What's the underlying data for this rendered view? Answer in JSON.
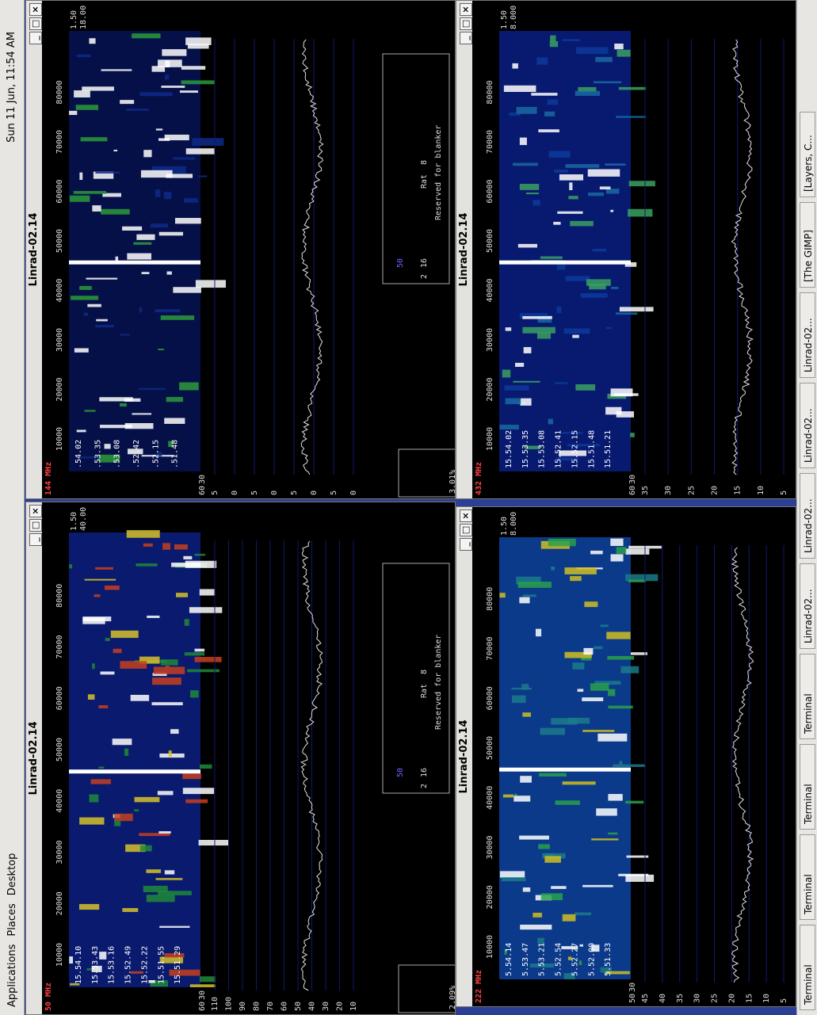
{
  "panel": {
    "menu": [
      "Applications",
      "Places",
      "Desktop"
    ],
    "clock": "Sun 11 Jun, 11:54 AM"
  },
  "taskbar": [
    "Terminal",
    "Terminal",
    "Terminal",
    "Terminal",
    "Linrad-02...",
    "Linrad-02...",
    "Linrad-02...",
    "Linrad-02...",
    "[The GIMP]",
    "[Layers, C..."
  ],
  "windows": [
    {
      "title": "Linrad-02.14",
      "band": "50 MHz",
      "freq_labels": [
        "10000",
        "20000",
        "30000",
        "40000",
        "50000",
        "60000",
        "70000",
        "80000"
      ],
      "time_labels": [
        "15.54.10",
        "15.53.43",
        "15.53.16",
        "15.52.49",
        "15.52.22",
        "15.51.55",
        "15.51.29"
      ],
      "level_labels": [
        "110",
        "100",
        "90",
        "80",
        "70",
        "60",
        "50",
        "40",
        "30",
        "20",
        "10"
      ],
      "corner": [
        "1.50",
        "40.00",
        "60",
        "30"
      ],
      "percent": "2.09%",
      "blanker": {
        "text": "Reserved for blanker",
        "rat": "Rat",
        "rat_value": "8",
        "gain": "50",
        "bits": [
          "2",
          "16"
        ]
      }
    },
    {
      "title": "Linrad-02.14",
      "band": "144 MHz",
      "freq_labels": [
        "10000",
        "20000",
        "30000",
        "40000",
        "50000",
        "60000",
        "70000",
        "80000"
      ],
      "time_labels": [
        ".54.02",
        ".53.35",
        ".53.08",
        ".52.42",
        ".52.15",
        ".51.48"
      ],
      "level_labels": [
        "5",
        "0",
        "5",
        "0",
        "5",
        "0",
        "5",
        "0"
      ],
      "corner": [
        "1.50",
        "18.00",
        "60",
        "30"
      ],
      "percent": "3.01%",
      "blanker": {
        "text": "Reserved for blanker",
        "rat": "Rat",
        "rat_value": "8",
        "gain": "50",
        "bits": [
          "2",
          "16"
        ]
      }
    },
    {
      "title": "Linrad-02.14",
      "band": "222 MHz",
      "freq_labels": [
        "10000",
        "20000",
        "30000",
        "40000",
        "50000",
        "60000",
        "70000",
        "80000"
      ],
      "time_labels": [
        "5.54.14",
        "5.53.47",
        "5.53.21",
        "5.52.54",
        "5.52.27",
        "5.52.00",
        "5.51.33"
      ],
      "level_labels": [
        "45",
        "40",
        "35",
        "30",
        "25",
        "20",
        "15",
        "10",
        "5"
      ],
      "corner": [
        "1.50",
        "8.000",
        "50",
        "30"
      ]
    },
    {
      "title": "Linrad-02.14",
      "band": "432 MHz",
      "freq_labels": [
        "10000",
        "20000",
        "30000",
        "40000",
        "50000",
        "60000",
        "70000",
        "80000"
      ],
      "time_labels": [
        "15.54.02",
        "15.53.35",
        "15.53.08",
        "15.52.41",
        "15.52.15",
        "15.51.48",
        "15.51.21"
      ],
      "level_labels": [
        "35",
        "30",
        "25",
        "20",
        "15",
        "10",
        "5"
      ],
      "corner": [
        "1.50",
        "8.000",
        "60",
        "30"
      ]
    }
  ]
}
